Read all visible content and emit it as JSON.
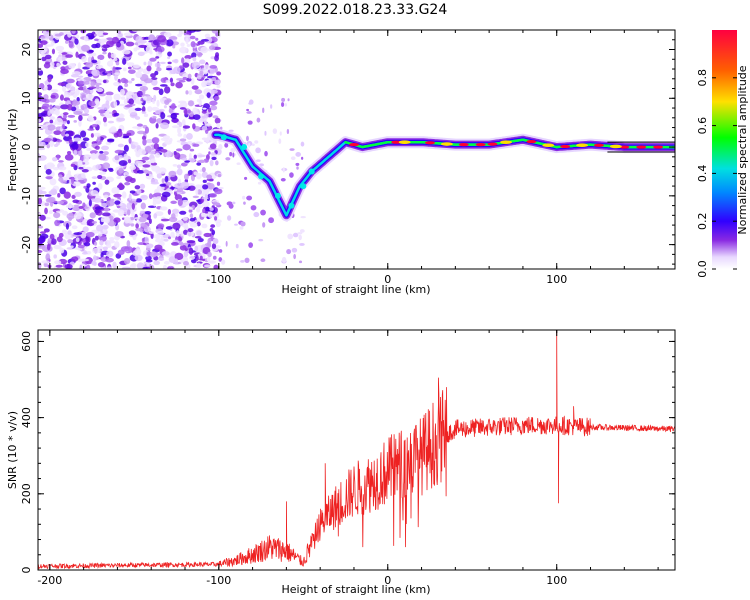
{
  "title": "S099.2022.018.23.33.G24",
  "chart_data": [
    {
      "type": "heatmap",
      "xlabel": "Height of straight line (km)",
      "ylabel": "Frequency (Hz)",
      "xlim": [
        -207,
        170
      ],
      "ylim": [
        -25,
        24
      ],
      "xticks": [
        -200,
        -100,
        0,
        100
      ],
      "yticks": [
        -20,
        -10,
        0,
        10,
        20
      ],
      "colorbar": {
        "label": "Normalized spectral amplitude",
        "range": [
          0,
          1
        ],
        "ticks": [
          "0.0",
          "0.2",
          "0.4",
          "0.6",
          "0.8"
        ],
        "colors": [
          "#ffffff",
          "#e8d8ff",
          "#8a2be2",
          "#3000ff",
          "#0088ff",
          "#00e0e0",
          "#00ff00",
          "#ffe000",
          "#ff6000",
          "#ff0040"
        ]
      },
      "ridge_points": [
        {
          "x": -100,
          "y": 2.5
        },
        {
          "x": -90,
          "y": 1.5
        },
        {
          "x": -80,
          "y": -4
        },
        {
          "x": -70,
          "y": -7
        },
        {
          "x": -60,
          "y": -14
        },
        {
          "x": -52,
          "y": -8
        },
        {
          "x": -45,
          "y": -5
        },
        {
          "x": -35,
          "y": -2
        },
        {
          "x": -25,
          "y": 1
        },
        {
          "x": -15,
          "y": 0
        },
        {
          "x": 0,
          "y": 1
        },
        {
          "x": 20,
          "y": 1
        },
        {
          "x": 40,
          "y": 0.5
        },
        {
          "x": 60,
          "y": 0.5
        },
        {
          "x": 80,
          "y": 1.5
        },
        {
          "x": 100,
          "y": 0
        },
        {
          "x": 120,
          "y": 0.5
        },
        {
          "x": 140,
          "y": 0
        },
        {
          "x": 170,
          "y": 0
        }
      ]
    },
    {
      "type": "line",
      "xlabel": "Height of straight line (km)",
      "ylabel": "SNR (10 * v/v)",
      "xlim": [
        -207,
        170
      ],
      "ylim": [
        0,
        630
      ],
      "xticks": [
        -200,
        -100,
        0,
        100
      ],
      "yticks": [
        0,
        200,
        400,
        600
      ],
      "color": "#ee2222",
      "envelope": [
        {
          "x": -207,
          "y": 10
        },
        {
          "x": -100,
          "y": 15
        },
        {
          "x": -90,
          "y": 25
        },
        {
          "x": -80,
          "y": 40
        },
        {
          "x": -70,
          "y": 60
        },
        {
          "x": -60,
          "y": 50
        },
        {
          "x": -50,
          "y": 20
        },
        {
          "x": -40,
          "y": 120
        },
        {
          "x": -30,
          "y": 170
        },
        {
          "x": -20,
          "y": 210
        },
        {
          "x": -10,
          "y": 230
        },
        {
          "x": 0,
          "y": 260
        },
        {
          "x": 10,
          "y": 280
        },
        {
          "x": 20,
          "y": 300
        },
        {
          "x": 30,
          "y": 345
        },
        {
          "x": 40,
          "y": 370
        },
        {
          "x": 60,
          "y": 375
        },
        {
          "x": 80,
          "y": 380
        },
        {
          "x": 100,
          "y": 380
        },
        {
          "x": 120,
          "y": 375
        },
        {
          "x": 170,
          "y": 370
        }
      ],
      "spikes": [
        {
          "x": -60,
          "y": 180
        },
        {
          "x": -37,
          "y": 280
        },
        {
          "x": 30,
          "y": 505
        },
        {
          "x": 100,
          "y": 630
        },
        {
          "x": 101,
          "y": 175
        },
        {
          "x": 110,
          "y": 430
        }
      ]
    }
  ]
}
